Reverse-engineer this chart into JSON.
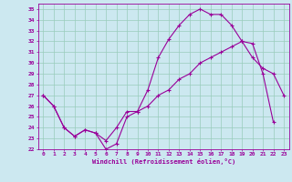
{
  "xlabel": "Windchill (Refroidissement éolien,°C)",
  "line_color": "#990099",
  "bg_color": "#cce8f0",
  "grid_color": "#99ccbb",
  "xlim": [
    -0.5,
    23.5
  ],
  "ylim": [
    22,
    35.5
  ],
  "xticks": [
    0,
    1,
    2,
    3,
    4,
    5,
    6,
    7,
    8,
    9,
    10,
    11,
    12,
    13,
    14,
    15,
    16,
    17,
    18,
    19,
    20,
    21,
    22,
    23
  ],
  "yticks": [
    22,
    23,
    24,
    25,
    26,
    27,
    28,
    29,
    30,
    31,
    32,
    33,
    34,
    35
  ],
  "line1_x": [
    0,
    1,
    2,
    3,
    4,
    5,
    6,
    7,
    8,
    9,
    10,
    11,
    12,
    13,
    14,
    15,
    16,
    17,
    18,
    19,
    20,
    21,
    22
  ],
  "line1_y": [
    27,
    26,
    24,
    23.2,
    23.8,
    23.5,
    22,
    22.5,
    25,
    25.5,
    27.5,
    30.5,
    32.2,
    33.5,
    34.5,
    35,
    34.5,
    34.5,
    33.5,
    32,
    31.8,
    29,
    24.5
  ],
  "line2_x": [
    0,
    1,
    2,
    3,
    4,
    5,
    6,
    7,
    8,
    9,
    10,
    11,
    12,
    13,
    14,
    15,
    16,
    17,
    18,
    19,
    20,
    21,
    22,
    23
  ],
  "line2_y": [
    27,
    26,
    24,
    23.2,
    23.8,
    23.5,
    22.8,
    24,
    25.5,
    25.5,
    26,
    27,
    27.5,
    28.5,
    29,
    30,
    30.5,
    31,
    31.5,
    32,
    30.5,
    29.5,
    29,
    27
  ]
}
